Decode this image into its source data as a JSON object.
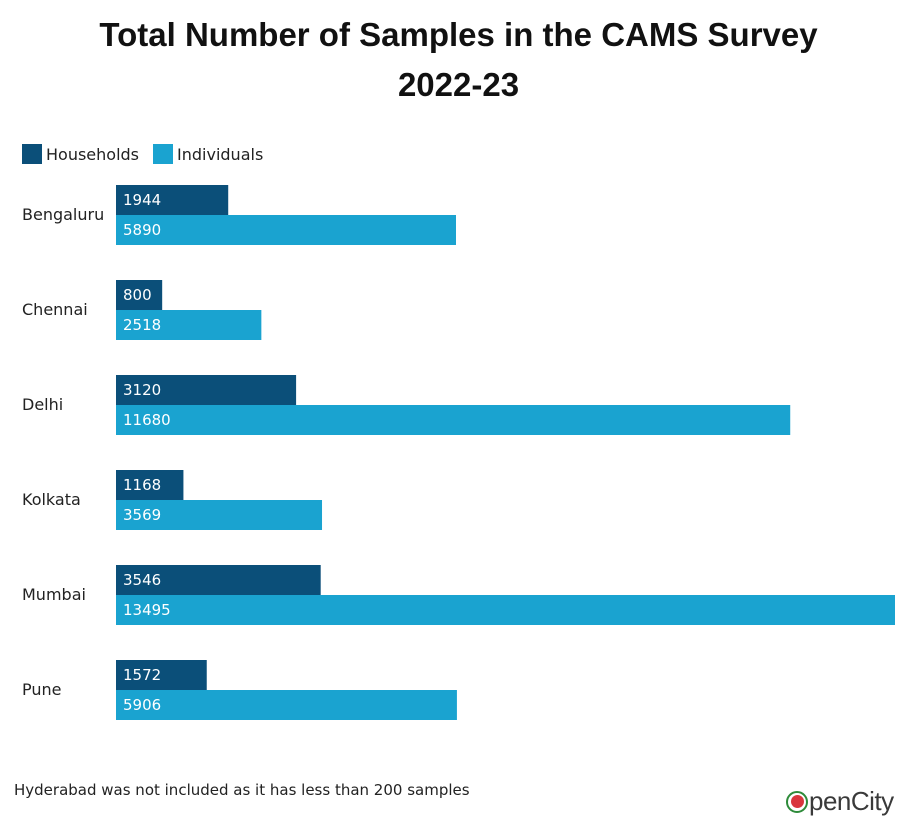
{
  "title_line1": "Total Number of Samples in the CAMS Survey",
  "title_line2": "2022-23",
  "footnote": "Hyderabad was not included as it has less than 200 samples",
  "logo_text": "penCity",
  "colors": {
    "households": "#0b4f79",
    "individuals": "#1aa3d0"
  },
  "chart_data": {
    "type": "bar",
    "orientation": "horizontal",
    "categories": [
      "Bengaluru",
      "Chennai",
      "Delhi",
      "Kolkata",
      "Mumbai",
      "Pune"
    ],
    "series": [
      {
        "name": "Households",
        "values": [
          1944,
          800,
          3120,
          1168,
          3546,
          1572
        ]
      },
      {
        "name": "Individuals",
        "values": [
          5890,
          2518,
          11680,
          3569,
          13495,
          5906
        ]
      }
    ],
    "legend_position": "top-left",
    "grid": false,
    "data_labels": true
  }
}
